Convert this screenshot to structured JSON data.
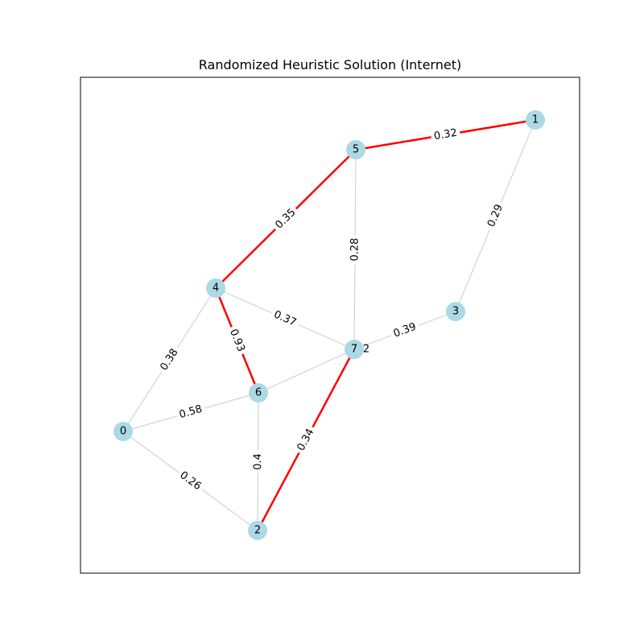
{
  "title": "Randomized Heuristic Solution (Internet)",
  "colors": {
    "node_fill": "#add8e6",
    "edge_default": "#d3d3d3",
    "edge_highlight": "#ff0000",
    "frame": "#000000",
    "background": "#ffffff"
  },
  "nodes": [
    {
      "id": "0"
    },
    {
      "id": "1"
    },
    {
      "id": "2"
    },
    {
      "id": "3"
    },
    {
      "id": "4"
    },
    {
      "id": "5"
    },
    {
      "id": "6"
    },
    {
      "id": "7"
    }
  ],
  "edges": [
    {
      "source": "0",
      "target": "4",
      "weight": "0.38",
      "highlighted": false
    },
    {
      "source": "0",
      "target": "6",
      "weight": "0.58",
      "highlighted": false
    },
    {
      "source": "0",
      "target": "2",
      "weight": "0.26",
      "highlighted": false
    },
    {
      "source": "6",
      "target": "2",
      "weight": "0.4",
      "highlighted": false
    },
    {
      "source": "6",
      "target": "7",
      "weight": "",
      "highlighted": false
    },
    {
      "source": "4",
      "target": "7",
      "weight": "0.37",
      "highlighted": false
    },
    {
      "source": "5",
      "target": "7",
      "weight": "0.28",
      "highlighted": false
    },
    {
      "source": "1",
      "target": "3",
      "weight": "0.29",
      "highlighted": false
    },
    {
      "source": "7",
      "target": "3",
      "weight": "0.39",
      "highlighted": false
    },
    {
      "source": "5",
      "target": "1",
      "weight": "0.32",
      "highlighted": true
    },
    {
      "source": "4",
      "target": "5",
      "weight": "0.35",
      "highlighted": true
    },
    {
      "source": "4",
      "target": "6",
      "weight": "0.93",
      "highlighted": true
    },
    {
      "source": "7",
      "target": "2",
      "weight": "0.34",
      "highlighted": true
    }
  ],
  "partial_labels": [
    {
      "text": "2",
      "edge": "6-7"
    }
  ]
}
